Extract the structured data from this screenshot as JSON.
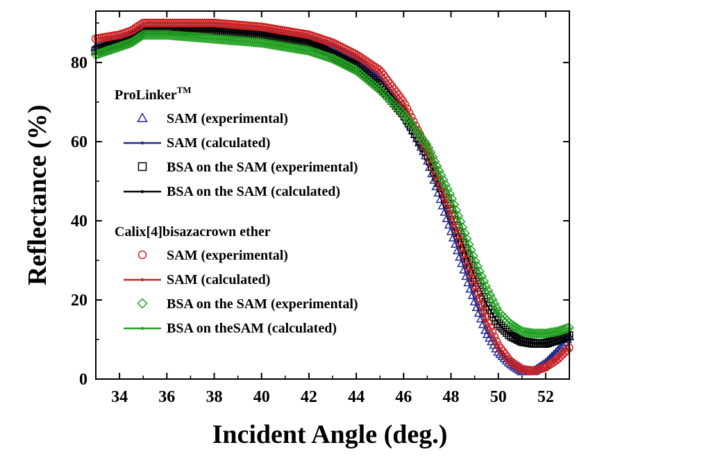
{
  "chart_data": {
    "type": "line",
    "xlabel": "Incident Angle (deg.)",
    "ylabel": "Reflectance (%)",
    "xlim": [
      33,
      53
    ],
    "ylim": [
      0,
      93
    ],
    "xticks": [
      "34",
      "36",
      "38",
      "40",
      "42",
      "44",
      "46",
      "48",
      "50",
      "52"
    ],
    "yticks": [
      "0",
      "20",
      "40",
      "60",
      "80"
    ],
    "grid": false,
    "legend_position": "center-left",
    "legend_groups": [
      {
        "title": "ProLinker",
        "title_sup": "TM"
      },
      {
        "title": "Calix[4]bisazacrown ether",
        "title_sup": ""
      }
    ],
    "series": [
      {
        "name": "SAM (experimental)",
        "group": 0,
        "kind": "marker",
        "marker": "triangle",
        "color": "#1f2b8f",
        "x": [
          33,
          34,
          34.5,
          35,
          36,
          38,
          40,
          42,
          43,
          44,
          45,
          46,
          47,
          48,
          48.5,
          49,
          49.5,
          50,
          50.5,
          51,
          51.5,
          52,
          52.5,
          53
        ],
        "y": [
          84,
          86,
          87,
          89,
          89,
          89,
          88,
          86,
          84,
          81,
          76,
          68,
          56,
          38,
          29,
          20,
          12,
          7,
          4,
          2,
          2,
          4,
          7,
          11
        ]
      },
      {
        "name": "SAM (calculated)",
        "group": 0,
        "kind": "line",
        "color": "#1f2b8f",
        "x": [
          33,
          34,
          34.5,
          35,
          36,
          38,
          40,
          42,
          43,
          44,
          45,
          46,
          47,
          48,
          48.5,
          49,
          49.5,
          50,
          50.5,
          51,
          51.5,
          52,
          52.5,
          53
        ],
        "y": [
          84,
          86,
          87,
          89,
          89,
          89,
          88,
          86,
          84,
          81,
          76,
          68,
          56,
          38,
          29,
          20,
          12,
          7,
          4,
          2,
          2,
          4,
          7,
          11
        ]
      },
      {
        "name": "BSA on the SAM (experimental)",
        "group": 0,
        "kind": "marker",
        "marker": "square",
        "color": "#000000",
        "x": [
          33,
          34,
          34.5,
          35,
          36,
          38,
          40,
          42,
          43,
          44,
          45,
          46,
          47,
          48,
          48.5,
          49,
          49.5,
          50,
          50.5,
          51,
          51.5,
          52,
          52.5,
          53
        ],
        "y": [
          83,
          85,
          86,
          88,
          88,
          88,
          87,
          85,
          82,
          79,
          74,
          67,
          57,
          42,
          34,
          26,
          19,
          14,
          11,
          9.5,
          9,
          9,
          10,
          11
        ]
      },
      {
        "name": "BSA on the SAM (calculated)",
        "group": 0,
        "kind": "line",
        "color": "#000000",
        "x": [
          33,
          34,
          34.5,
          35,
          36,
          38,
          40,
          42,
          43,
          44,
          45,
          46,
          47,
          48,
          48.5,
          49,
          49.5,
          50,
          50.5,
          51,
          51.5,
          52,
          52.5,
          53
        ],
        "y": [
          83,
          85,
          86,
          88,
          88,
          88,
          87,
          85,
          82,
          79,
          74,
          67,
          57,
          42,
          34,
          26,
          19,
          14,
          11,
          9.5,
          9,
          9,
          10,
          11
        ]
      },
      {
        "name": "SAM (experimental)",
        "group": 1,
        "kind": "marker",
        "marker": "circle",
        "color": "#cc2222",
        "x": [
          33,
          34,
          34.5,
          35,
          36,
          38,
          40,
          42,
          43,
          44,
          45,
          46,
          47,
          48,
          48.5,
          49,
          49.5,
          50,
          50.5,
          51,
          51.5,
          52,
          52.5,
          53
        ],
        "y": [
          86,
          87,
          88,
          90,
          90,
          90,
          89,
          87,
          85,
          82,
          78,
          70,
          58,
          42,
          33,
          24,
          15,
          8.5,
          4.5,
          2.5,
          2,
          3,
          5,
          8
        ]
      },
      {
        "name": "SAM (calculated)",
        "group": 1,
        "kind": "line",
        "color": "#cc2222",
        "x": [
          33,
          34,
          34.5,
          35,
          36,
          38,
          40,
          42,
          43,
          44,
          45,
          46,
          47,
          48,
          48.5,
          49,
          49.5,
          50,
          50.5,
          51,
          51.5,
          52,
          52.5,
          53
        ],
        "y": [
          86,
          87,
          88,
          90,
          90,
          90,
          89,
          87,
          85,
          82,
          78,
          70,
          58,
          42,
          33,
          24,
          15,
          8.5,
          4.5,
          2.5,
          2,
          3,
          5,
          8
        ]
      },
      {
        "name": "BSA on the SAM (experimental)",
        "group": 1,
        "kind": "marker",
        "marker": "diamond",
        "color": "#22a022",
        "x": [
          33,
          34,
          34.5,
          35,
          36,
          38,
          40,
          42,
          43,
          44,
          45,
          46,
          47,
          48,
          48.5,
          49,
          49.5,
          50,
          50.5,
          51,
          51.5,
          52,
          52.5,
          53
        ],
        "y": [
          82,
          84,
          85,
          87,
          87,
          86,
          85,
          83,
          81,
          78,
          73,
          67,
          59,
          46,
          38,
          30,
          23,
          17,
          14,
          12,
          11.5,
          11.5,
          12,
          13
        ]
      },
      {
        "name": "BSA on theSAM (calculated)",
        "group": 1,
        "kind": "line",
        "color": "#22a022",
        "x": [
          33,
          34,
          34.5,
          35,
          36,
          38,
          40,
          42,
          43,
          44,
          45,
          46,
          47,
          48,
          48.5,
          49,
          49.5,
          50,
          50.5,
          51,
          51.5,
          52,
          52.5,
          53
        ],
        "y": [
          82,
          84,
          85,
          87,
          87,
          86,
          85,
          83,
          81,
          78,
          73,
          67,
          59,
          46,
          38,
          30,
          23,
          17,
          14,
          12,
          11.5,
          11.5,
          12,
          13
        ]
      }
    ]
  }
}
